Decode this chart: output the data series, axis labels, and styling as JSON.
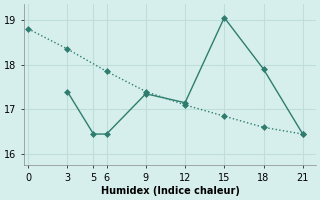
{
  "line1_x": [
    0,
    3,
    6,
    9,
    12,
    15,
    18,
    21
  ],
  "line1_y": [
    18.8,
    18.35,
    17.85,
    17.4,
    17.1,
    16.85,
    16.6,
    16.45
  ],
  "line2_x": [
    3,
    5,
    6,
    9,
    12,
    15,
    18,
    21
  ],
  "line2_y": [
    17.4,
    16.45,
    16.45,
    17.35,
    17.15,
    19.05,
    17.9,
    16.45
  ],
  "line_color": "#2e7d6e",
  "bg_color": "#d6efed",
  "grid_color": "#c0ddd9",
  "xlabel": "Humidex (Indice chaleur)",
  "xlim": [
    -0.3,
    22
  ],
  "ylim": [
    15.75,
    19.35
  ],
  "xticks": [
    0,
    3,
    5,
    6,
    9,
    12,
    15,
    18,
    21
  ],
  "yticks": [
    16,
    17,
    18,
    19
  ],
  "marker": "D",
  "markersize": 3,
  "linewidth": 1.0,
  "xlabel_fontsize": 7,
  "tick_fontsize": 7
}
